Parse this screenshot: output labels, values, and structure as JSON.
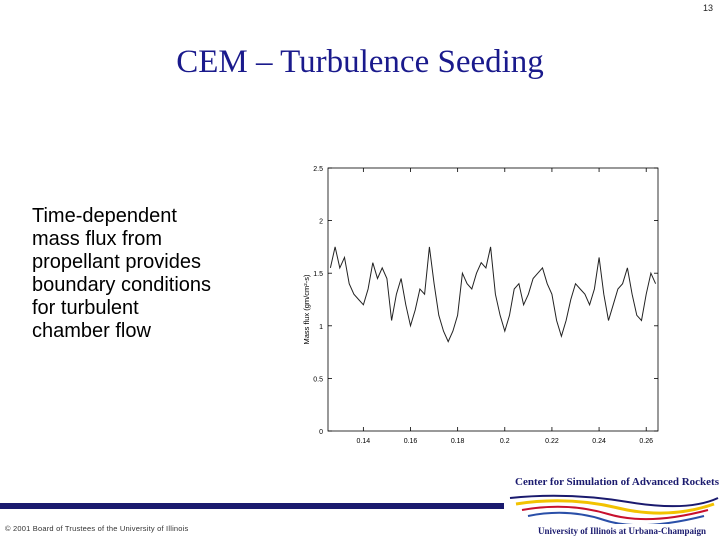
{
  "slide": {
    "number": "13",
    "title": "CEM – Turbulence Seeding",
    "body_lines": [
      "Time-dependent",
      "mass flux from",
      "propellant provides",
      "boundary conditions",
      "for turbulent",
      "chamber flow"
    ],
    "copyright": "© 2001 Board of Trustees of the University of Illinois"
  },
  "logo": {
    "center_name": "Center for Simulation of Advanced Rockets",
    "university": "University of Illinois at Urbana-Champaign",
    "colors": {
      "navy": "#1a1a6e",
      "yellow": "#f2c200",
      "red": "#c8102e",
      "blue": "#2a4fa8"
    }
  },
  "colors": {
    "title": "#1a1a8c",
    "footer_bar": "#1a1a6e"
  },
  "chart_data": {
    "type": "line",
    "title": "",
    "xlabel": "",
    "ylabel": "Mass flux (gm/cm²-s)",
    "xlim": [
      0.125,
      0.265
    ],
    "ylim": [
      0,
      2.5
    ],
    "xticks": [
      "0.14",
      "0.16",
      "0.18",
      "0.2",
      "0.22",
      "0.24",
      "0.26"
    ],
    "yticks": [
      "0",
      "0.5",
      "1",
      "1.5",
      "2",
      "2.5"
    ],
    "grid": false,
    "series": [
      {
        "name": "",
        "x": [
          0.126,
          0.128,
          0.13,
          0.132,
          0.134,
          0.136,
          0.138,
          0.14,
          0.142,
          0.144,
          0.146,
          0.148,
          0.15,
          0.152,
          0.154,
          0.156,
          0.158,
          0.16,
          0.162,
          0.164,
          0.166,
          0.168,
          0.17,
          0.172,
          0.174,
          0.176,
          0.178,
          0.18,
          0.182,
          0.184,
          0.186,
          0.188,
          0.19,
          0.192,
          0.194,
          0.196,
          0.198,
          0.2,
          0.202,
          0.204,
          0.206,
          0.208,
          0.21,
          0.212,
          0.214,
          0.216,
          0.218,
          0.22,
          0.222,
          0.224,
          0.226,
          0.228,
          0.23,
          0.232,
          0.234,
          0.236,
          0.238,
          0.24,
          0.242,
          0.244,
          0.246,
          0.248,
          0.25,
          0.252,
          0.254,
          0.256,
          0.258,
          0.26,
          0.262,
          0.264
        ],
        "y": [
          1.55,
          1.75,
          1.55,
          1.65,
          1.4,
          1.3,
          1.25,
          1.2,
          1.35,
          1.6,
          1.45,
          1.55,
          1.45,
          1.05,
          1.3,
          1.45,
          1.2,
          1.0,
          1.15,
          1.35,
          1.3,
          1.75,
          1.4,
          1.1,
          0.95,
          0.85,
          0.95,
          1.1,
          1.5,
          1.4,
          1.35,
          1.5,
          1.6,
          1.55,
          1.75,
          1.3,
          1.1,
          0.95,
          1.1,
          1.35,
          1.4,
          1.2,
          1.3,
          1.45,
          1.5,
          1.55,
          1.4,
          1.3,
          1.05,
          0.9,
          1.05,
          1.25,
          1.4,
          1.35,
          1.3,
          1.2,
          1.35,
          1.65,
          1.3,
          1.05,
          1.2,
          1.35,
          1.4,
          1.55,
          1.3,
          1.1,
          1.05,
          1.3,
          1.5,
          1.4
        ]
      }
    ]
  }
}
